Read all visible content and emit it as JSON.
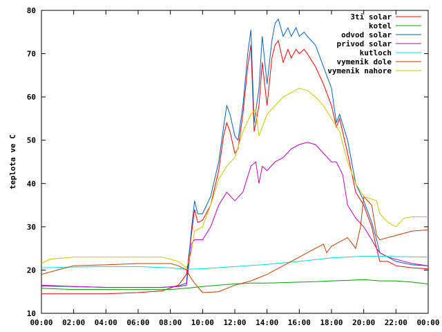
{
  "chart_data": {
    "type": "line",
    "title": "",
    "xlabel": "",
    "ylabel": "teplota ve C",
    "xlim": [
      0,
      24
    ],
    "ylim": [
      10,
      80
    ],
    "xticks": [
      "00:00",
      "02:00",
      "04:00",
      "06:00",
      "08:00",
      "10:00",
      "12:00",
      "14:00",
      "16:00",
      "18:00",
      "20:00",
      "22:00",
      "00:00"
    ],
    "yticks": [
      "10",
      "20",
      "30",
      "40",
      "50",
      "60",
      "70",
      "80"
    ],
    "grid": false,
    "legend": "top-right",
    "series": [
      {
        "name": "3ti solar",
        "color": "#ff0000",
        "x": [
          0,
          2,
          4,
          6,
          7.5,
          8.5,
          9,
          9.3,
          9.5,
          9.7,
          10,
          10.5,
          11,
          11.3,
          11.5,
          11.7,
          12,
          12.2,
          12.5,
          12.8,
          13,
          13.2,
          13.5,
          13.7,
          14,
          14.3,
          14.5,
          14.7,
          15,
          15.3,
          15.5,
          15.8,
          16,
          16.3,
          16.5,
          17,
          17.5,
          18,
          18.3,
          18.5,
          19,
          19.5,
          20,
          20.5,
          20.8,
          21,
          21.5,
          22,
          23,
          24
        ],
        "y": [
          14.5,
          14.5,
          14.5,
          14.8,
          15.2,
          16.5,
          19,
          28,
          34,
          31,
          31.5,
          35,
          43,
          51,
          54,
          52,
          47,
          48,
          56,
          67,
          72,
          52,
          58,
          68,
          58,
          69,
          72,
          73,
          68,
          71,
          69,
          71,
          70,
          71,
          70,
          67,
          63,
          58,
          53,
          55,
          47,
          38,
          35,
          30,
          25,
          22,
          22,
          21,
          20.5,
          20.3
        ]
      },
      {
        "name": "kotel",
        "color": "#00a000",
        "x": [
          0,
          2,
          4,
          6,
          8,
          9,
          10,
          11,
          12,
          13,
          14,
          15,
          16,
          17,
          18,
          19,
          20,
          21,
          22,
          23,
          24
        ],
        "y": [
          15.8,
          15.5,
          15.5,
          15.5,
          15.5,
          15.8,
          16.2,
          16.5,
          16.8,
          17,
          17,
          17.1,
          17.2,
          17.3,
          17.5,
          17.6,
          17.8,
          17.5,
          17.5,
          17.2,
          16.8
        ]
      },
      {
        "name": "odvod solar",
        "color": "#0060c0",
        "x": [
          0,
          2,
          4,
          6,
          7.5,
          8.5,
          9,
          9.3,
          9.5,
          9.7,
          10,
          10.5,
          11,
          11.3,
          11.5,
          11.7,
          12,
          12.2,
          12.5,
          12.8,
          13,
          13.2,
          13.5,
          13.7,
          14,
          14.3,
          14.5,
          14.7,
          15,
          15.3,
          15.5,
          15.8,
          16,
          16.3,
          16.5,
          17,
          17.5,
          18,
          18.3,
          18.5,
          19,
          19.5,
          20,
          20.5,
          20.8,
          21,
          21.5,
          22,
          23,
          24
        ],
        "y": [
          16.3,
          16.2,
          16,
          16,
          16,
          16.3,
          17,
          29,
          36,
          33,
          33,
          37,
          45,
          53,
          58,
          56,
          51,
          50,
          58,
          70,
          75.5,
          54,
          62,
          74,
          63,
          73,
          77,
          78,
          74,
          76,
          74,
          76,
          74,
          75,
          74,
          72,
          67,
          62,
          54,
          56,
          50,
          40,
          36,
          31,
          27,
          24,
          23,
          22,
          21.2,
          21
        ]
      },
      {
        "name": "privod solar",
        "color": "#c000c0",
        "x": [
          0,
          2,
          4,
          6,
          7.5,
          8.5,
          9,
          9.3,
          9.5,
          10,
          10.5,
          11,
          11.5,
          12,
          12.5,
          13,
          13.3,
          13.5,
          13.7,
          14,
          14.5,
          15,
          15.5,
          16,
          16.5,
          17,
          17.5,
          18,
          18.3,
          18.7,
          19,
          19.5,
          20,
          20.5,
          20.8,
          21,
          21.5,
          22,
          23,
          24
        ],
        "y": [
          16.5,
          16.2,
          16,
          16,
          16,
          16.2,
          16.5,
          26,
          27,
          27,
          30,
          35,
          38,
          36,
          38,
          44,
          45,
          40,
          44,
          43,
          45,
          46,
          48,
          49,
          49.5,
          49,
          47,
          45,
          45,
          42,
          35,
          32,
          30,
          27,
          25,
          24,
          23,
          22.5,
          21.5,
          21
        ]
      },
      {
        "name": "kutloch",
        "color": "#00e0e0",
        "x": [
          0,
          2,
          4,
          6,
          8,
          9,
          10,
          12,
          14,
          16,
          18,
          20,
          21,
          22,
          24
        ],
        "y": [
          20.5,
          20.7,
          20.8,
          20.8,
          20.5,
          20.2,
          20.3,
          20.8,
          21.3,
          22,
          22.8,
          23.2,
          23.2,
          23.1,
          23
        ]
      },
      {
        "name": "vymenik dole",
        "color": "#c04000",
        "x": [
          0,
          1,
          2,
          4,
          6,
          8,
          8.5,
          9,
          9.3,
          9.5,
          10,
          11,
          12,
          13,
          14,
          15,
          16,
          17,
          17.5,
          17.7,
          18,
          18.5,
          19,
          19.5,
          19.8,
          20,
          20.5,
          20.8,
          21,
          21.5,
          22,
          23,
          24
        ],
        "y": [
          19,
          20,
          21,
          21.2,
          21.5,
          21.5,
          21,
          20,
          18,
          17,
          14.8,
          15,
          16.5,
          17.5,
          19,
          21,
          23,
          25,
          26,
          24,
          25.5,
          26.5,
          27.5,
          25,
          30,
          37,
          35,
          28,
          27,
          27.5,
          28,
          29,
          29.3
        ]
      },
      {
        "name": "vymenik nahore",
        "color": "#c8c800",
        "x": [
          0,
          0.5,
          2,
          4,
          6,
          7.5,
          8.5,
          9,
          9.3,
          9.5,
          10,
          10.5,
          11,
          11.5,
          12,
          12.5,
          13,
          13.3,
          13.5,
          14,
          14.5,
          15,
          15.5,
          16,
          16.5,
          17,
          17.5,
          18,
          18.5,
          19,
          19.5,
          20,
          20.8,
          21,
          21.5,
          22,
          22.5,
          23,
          24
        ],
        "y": [
          21.5,
          22.5,
          23,
          23,
          23,
          23,
          22,
          20.5,
          24,
          29,
          30,
          35,
          41,
          44,
          46,
          52,
          56,
          57,
          51,
          56,
          58,
          60,
          61,
          62,
          61.5,
          60,
          58,
          55,
          52,
          45,
          40,
          37,
          36,
          33,
          31,
          30,
          32,
          32.3,
          32.3
        ]
      }
    ]
  }
}
